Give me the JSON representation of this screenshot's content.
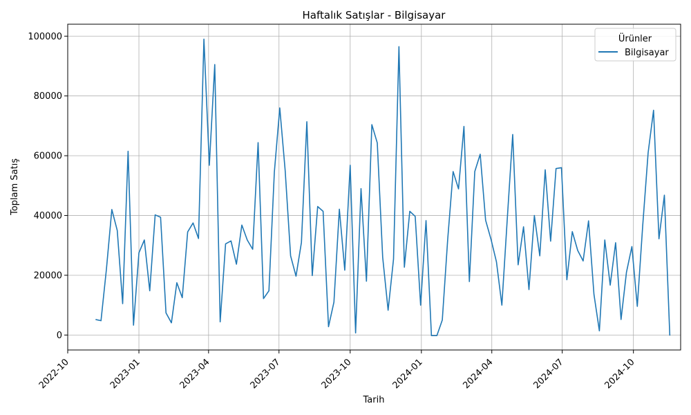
{
  "chart_data": {
    "type": "line",
    "title": "Haftalık Satışlar - Bilgisayar",
    "xlabel": "Tarih",
    "ylabel": "Toplam Satış",
    "legend": {
      "title": "Ürünler",
      "placement": "top-right"
    },
    "grid": true,
    "xlim": [
      "2022-10-01",
      "2024-12-01"
    ],
    "ylim": [
      -5000,
      104000
    ],
    "x_ticks": [
      "2022-10",
      "2023-01",
      "2023-04",
      "2023-07",
      "2023-10",
      "2024-01",
      "2024-04",
      "2024-07",
      "2024-10"
    ],
    "y_ticks": [
      0,
      20000,
      40000,
      60000,
      80000,
      100000
    ],
    "series": [
      {
        "name": "Bilgisayar",
        "color": "#1f77b4",
        "start_date": "2022-11-06",
        "step_days": 7,
        "values": [
          5200,
          4800,
          22000,
          42000,
          35000,
          10500,
          61500,
          3300,
          27500,
          31800,
          14800,
          40200,
          39400,
          7400,
          4100,
          17500,
          12500,
          34500,
          37500,
          32300,
          99000,
          56800,
          90500,
          4400,
          30500,
          31500,
          23700,
          36800,
          31800,
          28700,
          64400,
          12200,
          14800,
          54500,
          76000,
          55000,
          26500,
          19700,
          31000,
          71400,
          19900,
          43000,
          41400,
          2800,
          11000,
          42100,
          21700,
          56800,
          700,
          49000,
          18000,
          70400,
          64300,
          26000,
          8300,
          25400,
          96500,
          22700,
          41400,
          39700,
          10000,
          38300,
          -200,
          -200,
          5000,
          32000,
          54700,
          48900,
          69800,
          17900,
          54700,
          60500,
          38400,
          32000,
          24500,
          10000,
          38900,
          67100,
          23500,
          36200,
          15200,
          40000,
          26500,
          55300,
          31400,
          55700,
          56000,
          18500,
          34600,
          28300,
          24800,
          38200,
          13600,
          1400,
          31800,
          16700,
          30900,
          5200,
          21000,
          29600,
          9600,
          36600,
          61000,
          75200,
          32200,
          46800,
          -200
        ]
      }
    ]
  }
}
